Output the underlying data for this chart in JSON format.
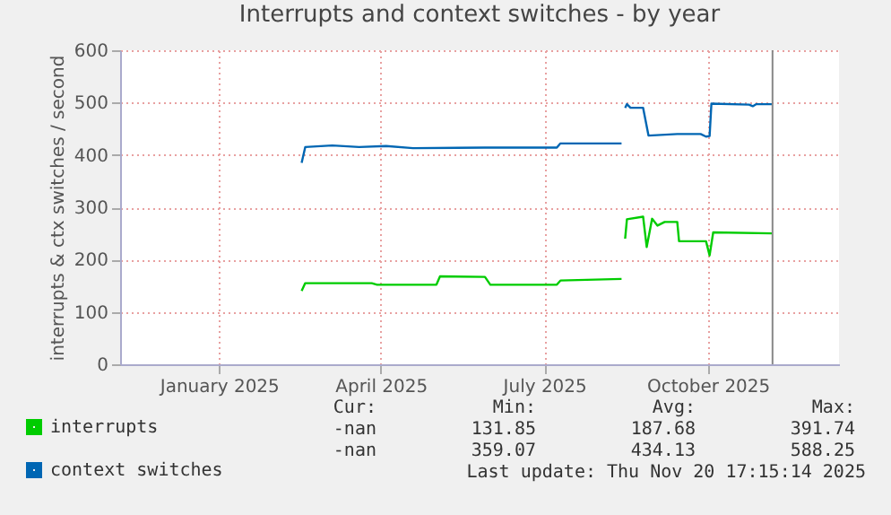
{
  "chart_data": {
    "type": "line",
    "title": "Interrupts and context switches - by year",
    "ylabel": "interrupts & ctx switches / second",
    "xlim": [
      "2024-11-22",
      "2025-12-27"
    ],
    "xticks": [
      {
        "value": "2025-01-16",
        "label": "January 2025"
      },
      {
        "value": "2025-04-16",
        "label": "April 2025"
      },
      {
        "value": "2025-07-16",
        "label": "July 2025"
      },
      {
        "value": "2025-10-15",
        "label": "October 2025"
      }
    ],
    "ylim": [
      0,
      600
    ],
    "yticks": [
      0,
      100,
      200,
      300,
      400,
      500,
      600
    ],
    "grid": true,
    "legend": "bottom left",
    "series": [
      {
        "name": "interrupts",
        "color": "#00cc00",
        "x": [
          "2025-03-03",
          "2025-03-05",
          "2025-04-11",
          "2025-04-14",
          "2025-05-17",
          "2025-05-19",
          "2025-06-13",
          "2025-06-16",
          "2025-07-23",
          "2025-07-25",
          "2025-08-28",
          "2025-08-29",
          "2025-08-30",
          "2025-08-31",
          "2025-09-09",
          "2025-09-11",
          "2025-09-14",
          "2025-09-17",
          "2025-09-21",
          "2025-09-28",
          "2025-09-29",
          "2025-10-14",
          "2025-10-16",
          "2025-10-18",
          "2025-11-20"
        ],
        "values": [
          140,
          155,
          155,
          152,
          152,
          168,
          167,
          152,
          152,
          160,
          163,
          null,
          240,
          277,
          282,
          224,
          278,
          265,
          272,
          272,
          235,
          235,
          208,
          252,
          250
        ]
      },
      {
        "name": "context switches",
        "color": "#0066b3",
        "x": [
          "2025-03-03",
          "2025-03-05",
          "2025-03-20",
          "2025-04-04",
          "2025-04-19",
          "2025-05-04",
          "2025-06-13",
          "2025-07-23",
          "2025-07-25",
          "2025-08-28",
          "2025-08-29",
          "2025-08-30",
          "2025-08-31",
          "2025-09-02",
          "2025-09-09",
          "2025-09-12",
          "2025-09-28",
          "2025-10-11",
          "2025-10-14",
          "2025-10-16",
          "2025-10-17",
          "2025-11-07",
          "2025-11-09",
          "2025-11-11",
          "2025-11-20"
        ],
        "values": [
          385,
          415,
          418,
          415,
          417,
          413,
          414,
          414,
          422,
          422,
          null,
          490,
          497,
          490,
          490,
          437,
          440,
          440,
          435,
          436,
          498,
          496,
          493,
          497,
          497
        ]
      }
    ],
    "ref_lines": [
      {
        "axis": "x",
        "value": "2025-11-20",
        "color": "#888888"
      }
    ],
    "annotations": [
      "Cur:",
      "Min:",
      "Avg:",
      "Max:",
      "-nan",
      "131.85",
      "187.68",
      "391.74",
      "-nan",
      "359.07",
      "434.13",
      "588.25",
      "Last update: Thu Nov 20 17:15:14 2025"
    ]
  }
}
